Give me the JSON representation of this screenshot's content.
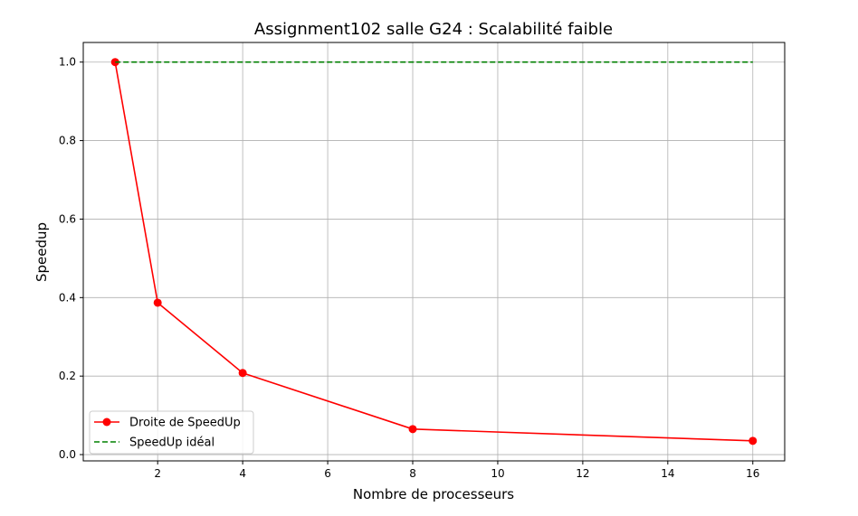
{
  "chart_data": {
    "type": "line",
    "title": "Assignment102 salle G24 : Scalabilité faible",
    "xlabel": "Nombre de processeurs",
    "ylabel": "Speedup",
    "xlim": [
      0.25,
      16.75
    ],
    "ylim": [
      -0.016,
      1.05
    ],
    "xticks": [
      2,
      4,
      6,
      8,
      10,
      12,
      14,
      16
    ],
    "yticks": [
      0.0,
      0.2,
      0.4,
      0.6,
      0.8,
      1.0
    ],
    "ytick_labels": [
      "0.0",
      "0.2",
      "0.4",
      "0.6",
      "0.8",
      "1.0"
    ],
    "grid": true,
    "legend_position": "lower-left",
    "series": [
      {
        "name": "Droite de SpeedUp",
        "color": "#ff0000",
        "style": "solid",
        "marker": "circle",
        "x": [
          1,
          2,
          4,
          8,
          16
        ],
        "y": [
          1.0,
          0.387,
          0.208,
          0.065,
          0.035
        ]
      },
      {
        "name": "SpeedUp idéal",
        "color": "#008000",
        "style": "dashed",
        "marker": "none",
        "x": [
          1,
          16
        ],
        "y": [
          1.0,
          1.0
        ]
      }
    ]
  }
}
